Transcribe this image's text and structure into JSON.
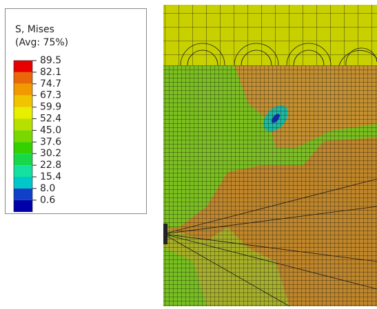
{
  "legend": {
    "title": "S, Mises",
    "subtitle": "(Avg: 75%)",
    "labels": [
      "89.5",
      "82.1",
      "74.7",
      "67.3",
      "59.9",
      "52.4",
      "45.0",
      "37.6",
      "30.2",
      "22.8",
      "15.4",
      "8.0",
      "0.6"
    ],
    "colors": [
      "#e80000",
      "#e8680a",
      "#f09a00",
      "#f0c400",
      "#e8ee00",
      "#b6e000",
      "#7ad800",
      "#34d000",
      "#18d84a",
      "#14e0a0",
      "#00c8c8",
      "#1040c8",
      "#0000a8"
    ]
  }
}
